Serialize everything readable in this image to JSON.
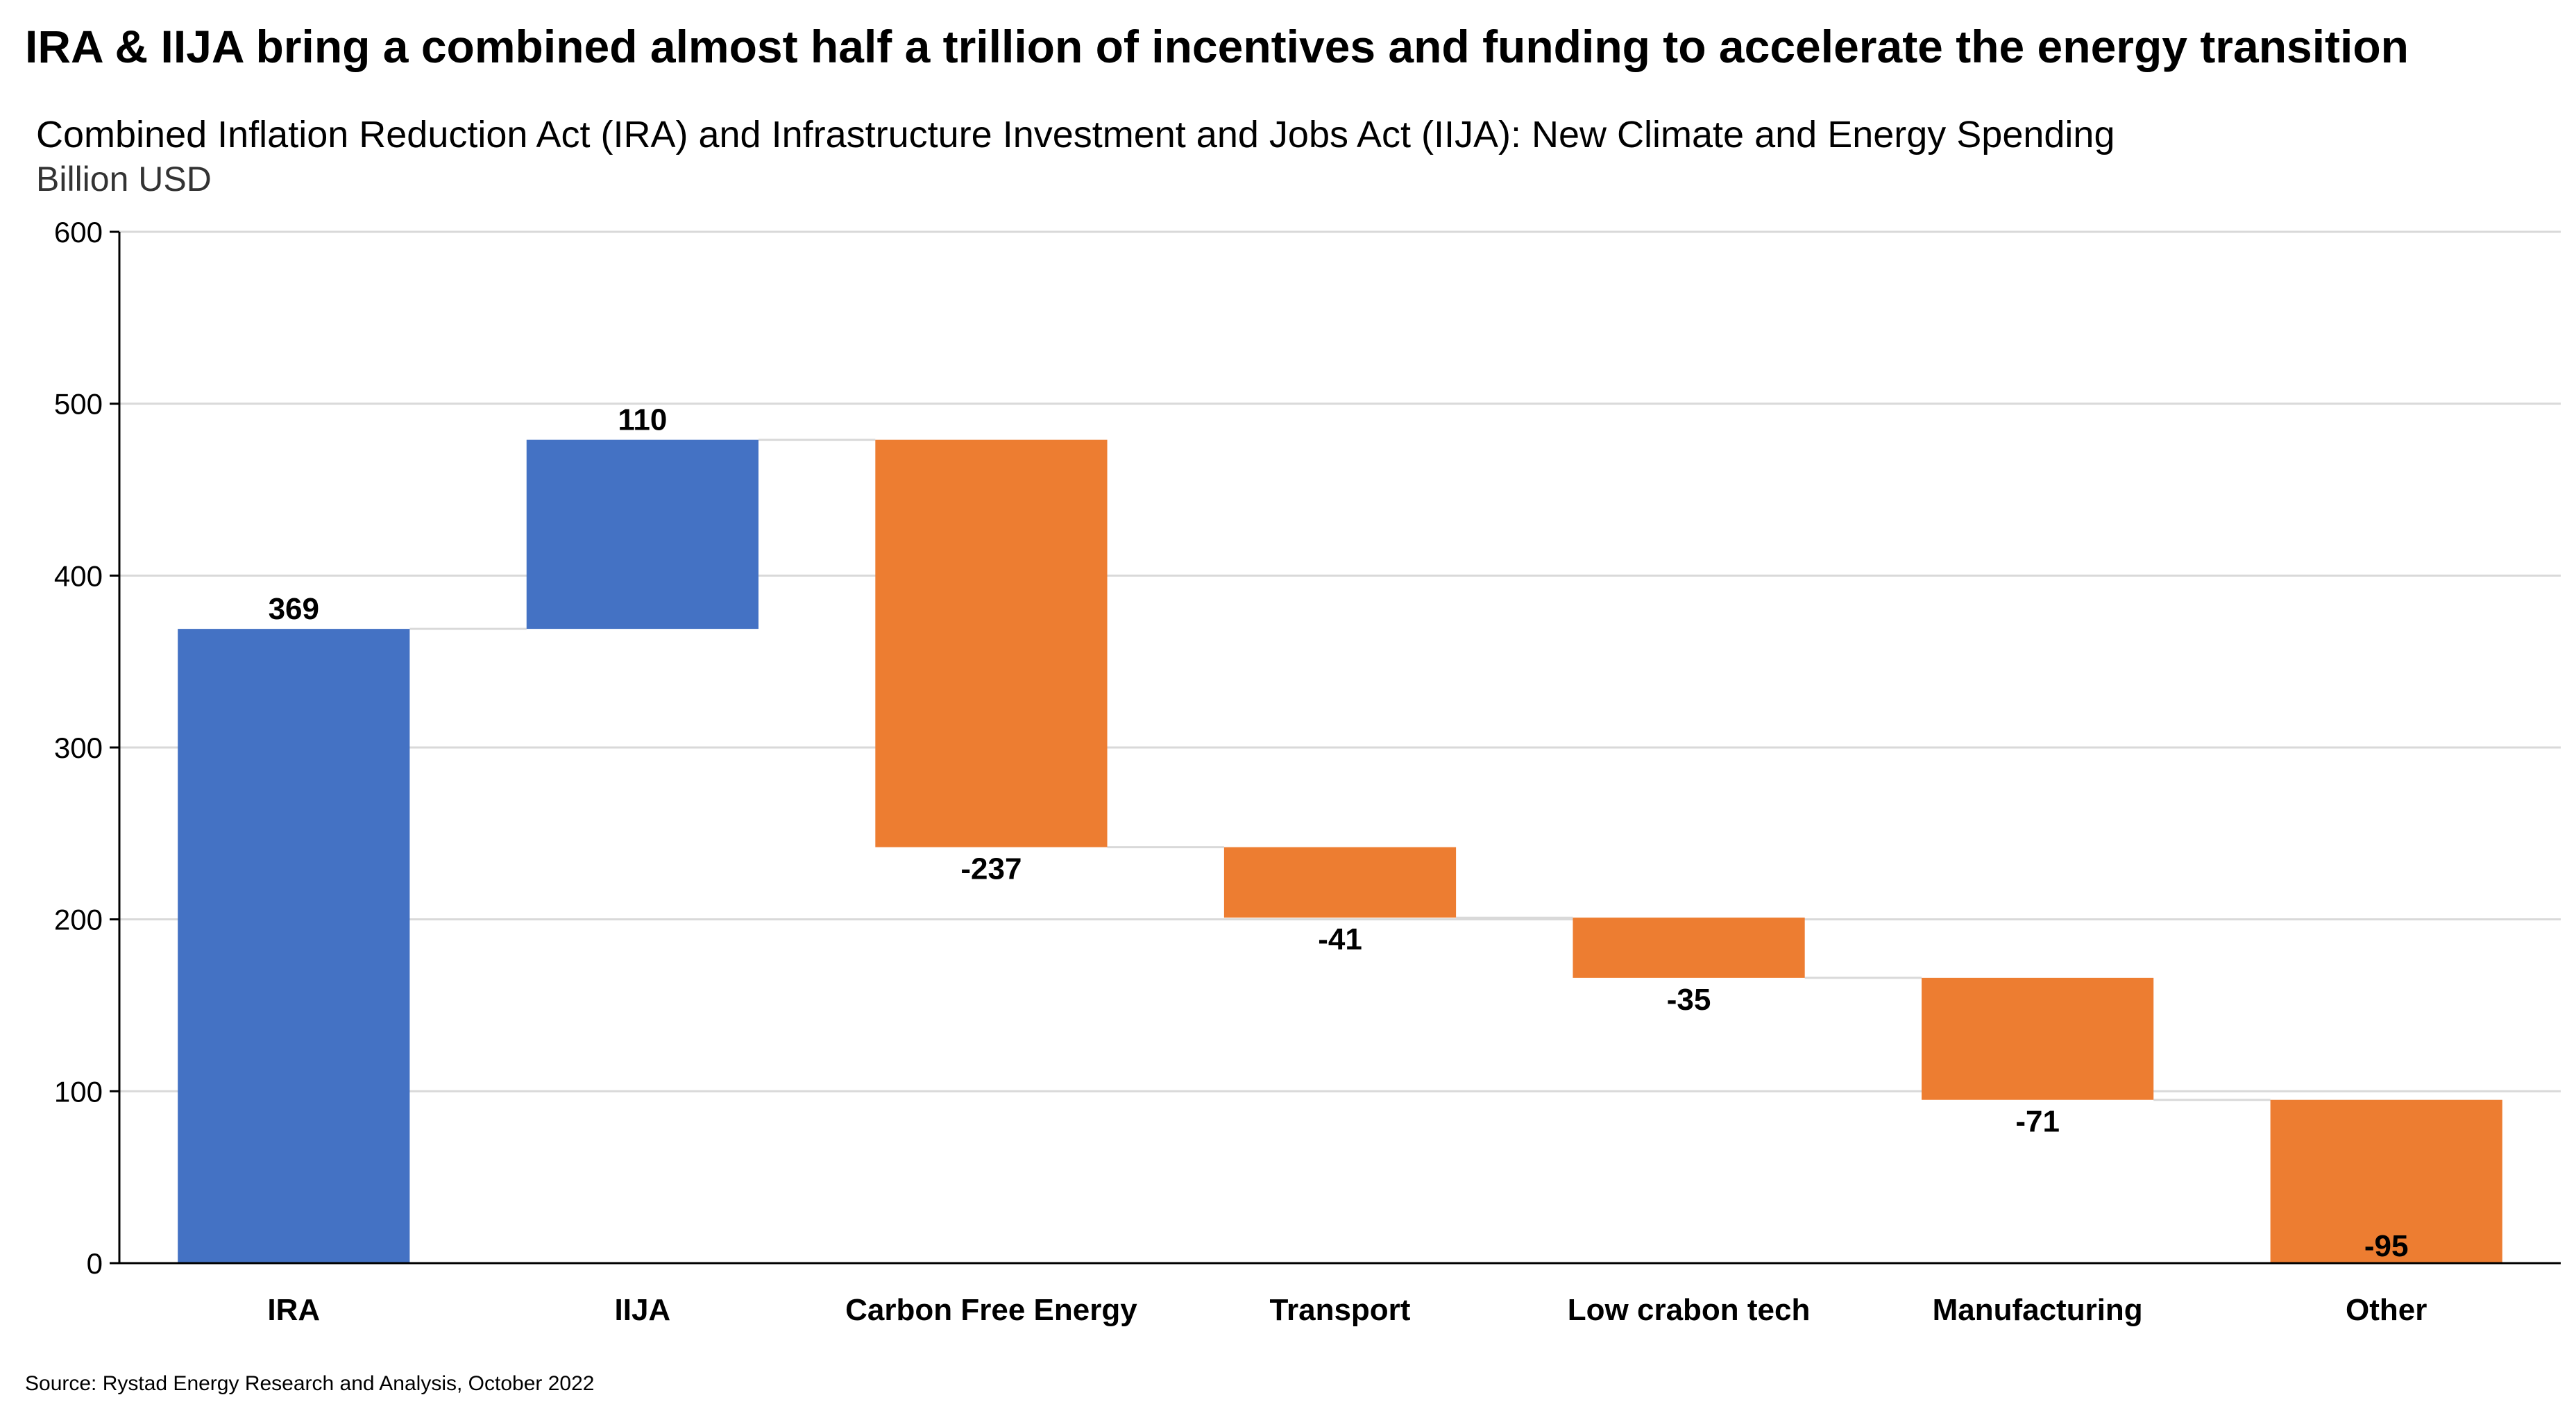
{
  "header": {
    "title": "IRA & IIJA bring a combined almost half a trillion of incentives and funding to accelerate the energy transition"
  },
  "footer": {
    "source": "Source: Rystad Energy Research and Analysis, October 2022"
  },
  "colors": {
    "increase": "#4472C4",
    "decrease": "#ED7D31",
    "grid": "#D9D9D9",
    "connector": "#D9D9D9",
    "axis": "#000000"
  },
  "chart_data": {
    "type": "bar",
    "subtype": "waterfall",
    "title": "Combined Inflation Reduction Act (IRA) and Infrastructure Investment and Jobs Act (IIJA): New Climate and Energy Spending",
    "ylabel": "Billion USD",
    "xlabel": "",
    "ylim": [
      0,
      600
    ],
    "yticks": [
      0,
      100,
      200,
      300,
      400,
      500,
      600
    ],
    "grid": true,
    "legend": "none",
    "categories": [
      "IRA",
      "IIJA",
      "Carbon Free Energy",
      "Transport",
      "Low crabon tech",
      "Manufacturing",
      "Other"
    ],
    "values": [
      369,
      110,
      -237,
      -41,
      -35,
      -71,
      -95
    ],
    "data_labels": [
      "369",
      "110",
      "-237",
      "-41",
      "-35",
      "-71",
      "-95"
    ]
  }
}
